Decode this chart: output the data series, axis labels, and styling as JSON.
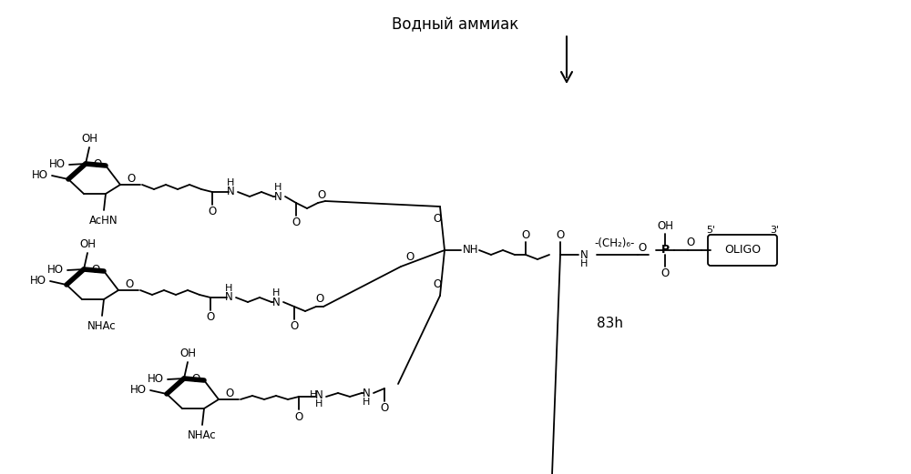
{
  "title": "Водный аммиак",
  "label_83h": "83h",
  "label_oligo": "OLIGO",
  "label_5prime": "5'",
  "label_3prime": "3'",
  "bg_color": "#ffffff"
}
